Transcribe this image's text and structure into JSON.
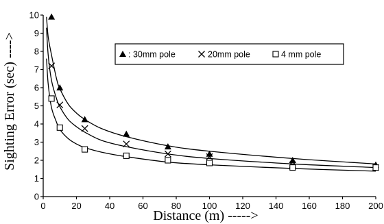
{
  "chart_data": {
    "type": "scatter",
    "xlabel": "Distance (m) ----->",
    "ylabel": "Sighting Error (sec) ---->",
    "xlim": [
      0,
      200
    ],
    "ylim": [
      0,
      10
    ],
    "xticks": [
      0,
      20,
      40,
      60,
      80,
      100,
      120,
      140,
      160,
      180,
      200
    ],
    "yticks": [
      0,
      1,
      2,
      3,
      4,
      5,
      6,
      7,
      8,
      9,
      10
    ],
    "grid": false,
    "legend_position": "top-right (inside plot, boxed)",
    "series": [
      {
        "name": ": 30mm pole",
        "marker": "triangle",
        "points": [
          [
            5,
            9.9
          ],
          [
            10,
            6.0
          ],
          [
            25,
            4.25
          ],
          [
            50,
            3.45
          ],
          [
            75,
            2.75
          ],
          [
            100,
            2.35
          ],
          [
            150,
            2.0
          ],
          [
            200,
            1.75
          ]
        ],
        "trend": [
          [
            2,
            9.9
          ],
          [
            3,
            8.8
          ],
          [
            5,
            7.8
          ],
          [
            8,
            6.5
          ],
          [
            10,
            5.95
          ],
          [
            15,
            5.1
          ],
          [
            20,
            4.6
          ],
          [
            25,
            4.25
          ],
          [
            35,
            3.75
          ],
          [
            50,
            3.3
          ],
          [
            75,
            2.8
          ],
          [
            100,
            2.5
          ],
          [
            150,
            2.1
          ],
          [
            200,
            1.8
          ]
        ]
      },
      {
        "name": "20mm pole",
        "marker": "x",
        "points": [
          [
            5,
            7.2
          ],
          [
            10,
            5.05
          ],
          [
            25,
            3.75
          ],
          [
            50,
            2.9
          ],
          [
            75,
            2.35
          ],
          [
            100,
            2.2
          ],
          [
            150,
            1.75
          ],
          [
            200,
            1.6
          ]
        ],
        "trend": [
          [
            2,
            9.3
          ],
          [
            3,
            7.8
          ],
          [
            5,
            6.4
          ],
          [
            8,
            5.4
          ],
          [
            10,
            4.95
          ],
          [
            15,
            4.25
          ],
          [
            20,
            3.85
          ],
          [
            25,
            3.55
          ],
          [
            35,
            3.1
          ],
          [
            50,
            2.75
          ],
          [
            75,
            2.35
          ],
          [
            100,
            2.1
          ],
          [
            150,
            1.8
          ],
          [
            200,
            1.6
          ]
        ]
      },
      {
        "name": "4 mm pole",
        "marker": "square",
        "points": [
          [
            5,
            5.4
          ],
          [
            10,
            3.8
          ],
          [
            25,
            2.6
          ],
          [
            50,
            2.25
          ],
          [
            75,
            2.0
          ],
          [
            100,
            1.85
          ],
          [
            150,
            1.6
          ],
          [
            200,
            1.6
          ]
        ],
        "trend": [
          [
            2,
            7.6
          ],
          [
            3,
            6.2
          ],
          [
            5,
            4.9
          ],
          [
            8,
            4.1
          ],
          [
            10,
            3.7
          ],
          [
            15,
            3.2
          ],
          [
            20,
            2.9
          ],
          [
            25,
            2.7
          ],
          [
            35,
            2.45
          ],
          [
            50,
            2.2
          ],
          [
            75,
            1.9
          ],
          [
            100,
            1.75
          ],
          [
            150,
            1.55
          ],
          [
            200,
            1.4
          ]
        ]
      }
    ]
  }
}
